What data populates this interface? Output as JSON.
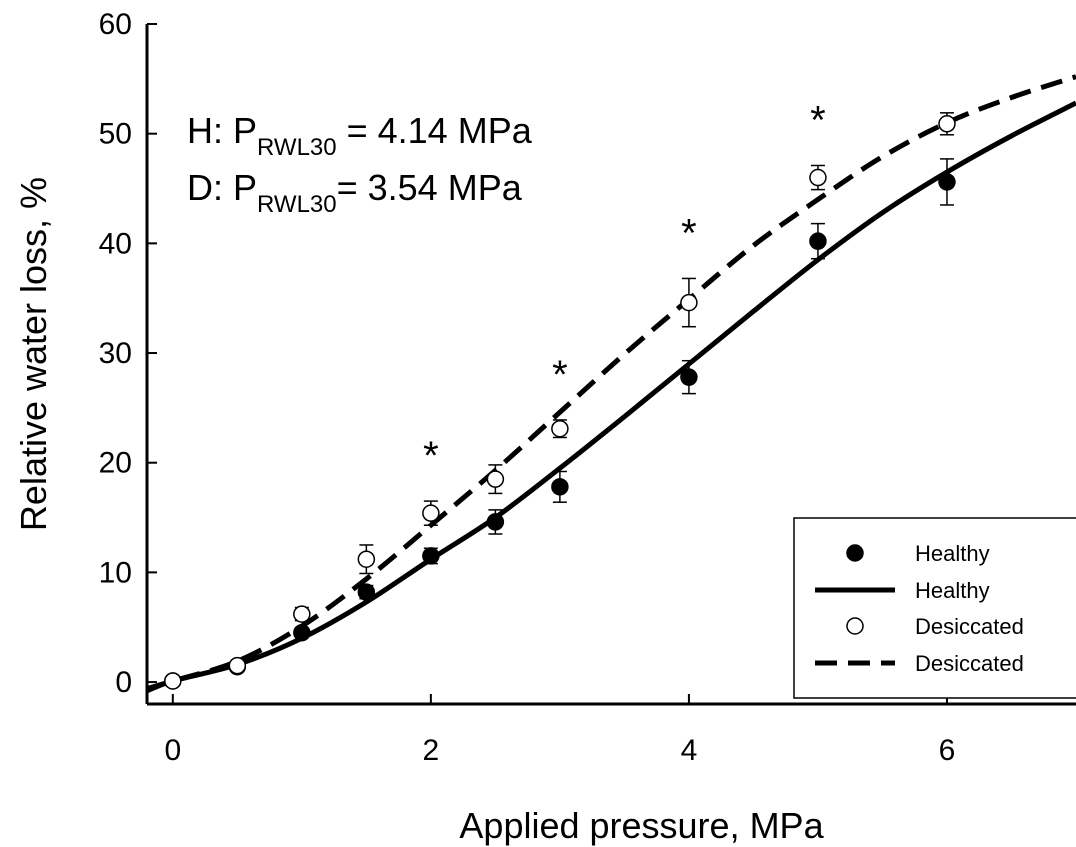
{
  "chart_data": {
    "type": "scatter",
    "xlabel": "Applied pressure, MPa",
    "ylabel": "Relative water loss, %",
    "xlim": [
      -0.2,
      7
    ],
    "ylim": [
      -2,
      60
    ],
    "x_ticks": [
      0,
      2,
      4,
      6
    ],
    "y_ticks": [
      0,
      10,
      20,
      30,
      40,
      50,
      60
    ],
    "grid": false,
    "legend_position": "bottom-right",
    "annotations": [
      {
        "prefix": "H: P",
        "subscript": "RWL30",
        "suffix": " = 4.14 MPa"
      },
      {
        "prefix": "D: P",
        "subscript": "RWL30",
        "suffix": "= 3.54 MPa"
      }
    ],
    "significance_marker": "*",
    "significance_x": [
      2,
      3,
      4,
      5
    ],
    "series": [
      {
        "name": "Healthy",
        "kind": "points",
        "marker": "filled-circle",
        "x": [
          0,
          0.5,
          1,
          1.5,
          2,
          2.5,
          3,
          4,
          5,
          6
        ],
        "y": [
          0.1,
          1.4,
          4.5,
          8.2,
          11.5,
          14.6,
          17.8,
          27.8,
          40.2,
          45.6
        ],
        "err": [
          0.2,
          0.3,
          0.4,
          0.6,
          0.7,
          1.1,
          1.4,
          1.5,
          1.6,
          2.1
        ]
      },
      {
        "name": "Healthy",
        "kind": "line",
        "style": "solid",
        "x": [
          -0.2,
          0,
          0.5,
          1,
          1.5,
          2,
          2.5,
          3,
          3.5,
          4,
          4.5,
          5,
          5.5,
          6,
          6.5,
          7
        ],
        "y": [
          -0.8,
          0.1,
          1.6,
          4.0,
          7.3,
          11.2,
          15.0,
          19.5,
          24.2,
          29.0,
          33.8,
          38.5,
          42.8,
          46.5,
          49.8,
          52.8
        ]
      },
      {
        "name": "Desiccated",
        "kind": "points",
        "marker": "open-circle",
        "x": [
          0,
          0.5,
          1,
          1.5,
          2,
          2.5,
          3,
          4,
          5,
          6
        ],
        "y": [
          0.1,
          1.5,
          6.2,
          11.2,
          15.4,
          18.5,
          23.1,
          34.6,
          46.0,
          50.9
        ],
        "err": [
          0.2,
          0.3,
          0.6,
          1.3,
          1.1,
          1.3,
          0.8,
          2.2,
          1.1,
          1.0
        ]
      },
      {
        "name": "Desiccated",
        "kind": "line",
        "style": "dashed",
        "x": [
          -0.2,
          0,
          0.5,
          1,
          1.5,
          2,
          2.5,
          3,
          3.5,
          4,
          4.5,
          5,
          5.5,
          6,
          6.5,
          7
        ],
        "y": [
          -0.6,
          0.1,
          1.9,
          5.1,
          9.4,
          14.3,
          19.3,
          24.6,
          29.9,
          34.9,
          39.8,
          44.0,
          47.9,
          51.0,
          53.3,
          55.2
        ]
      }
    ]
  }
}
